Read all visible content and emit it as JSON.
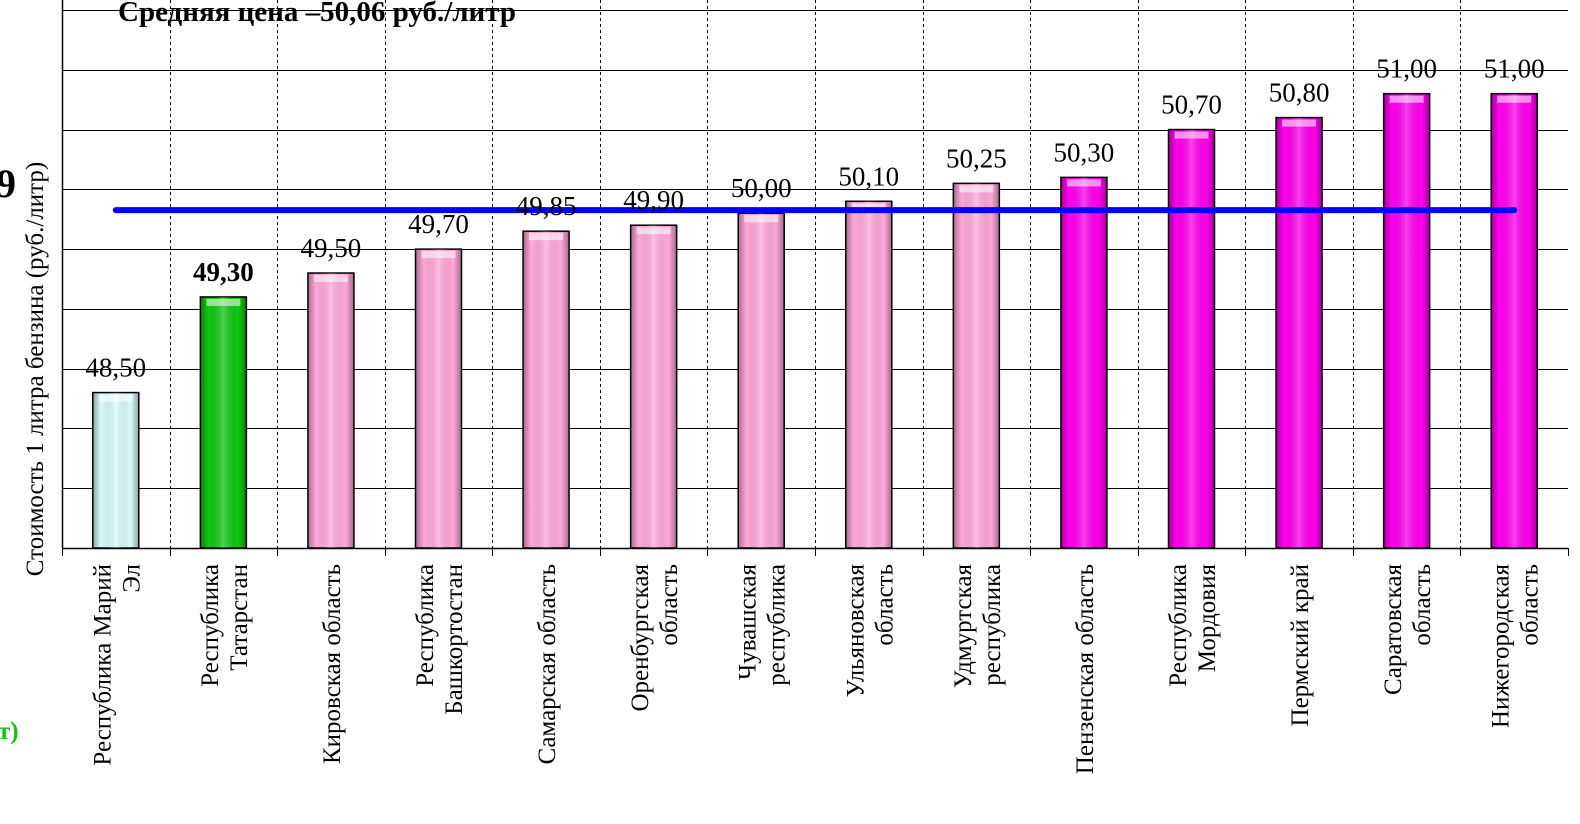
{
  "chart_data": {
    "type": "bar",
    "title": "Средняя цена –50,06 руб./литр",
    "ylabel": "Стоимость 1 литра бензина  (руб./литр)",
    "xlabel": "",
    "ylim": [
      47.2,
      51.7
    ],
    "grid": true,
    "average": 50.06,
    "categories": [
      [
        "Республика Марий",
        "Эл"
      ],
      [
        "Республика",
        "Татарстан"
      ],
      [
        "Кировская  область"
      ],
      [
        "Республика",
        "Башкортостан"
      ],
      [
        "Самарская область"
      ],
      [
        "Оренбургская",
        "область"
      ],
      [
        "Чувашская",
        "республика"
      ],
      [
        "Ульяновская",
        "область"
      ],
      [
        "Удмуртская",
        "республика"
      ],
      [
        "Пензенская область"
      ],
      [
        "Республика",
        "Мордовия"
      ],
      [
        "Пермский край"
      ],
      [
        "Саратовская",
        "область"
      ],
      [
        "Нижегородская",
        "область"
      ]
    ],
    "values": [
      48.5,
      49.3,
      49.5,
      49.7,
      49.85,
      49.9,
      50.0,
      50.1,
      50.25,
      50.3,
      50.7,
      50.8,
      51.0,
      51.0
    ],
    "value_labels": [
      "48,50",
      "49,30",
      "49,50",
      "49,70",
      "49,85",
      "49,90",
      "50,00",
      "50,10",
      "50,25",
      "50,30",
      "50,70",
      "50,80",
      "51,00",
      "51,00"
    ],
    "bold_index": 1,
    "bar_colors": [
      "#d8fbfb",
      "#12c812",
      "#ffa8d8",
      "#ffa8d8",
      "#ffa8d8",
      "#ffa8d8",
      "#ffa8d8",
      "#ffa8d8",
      "#ffa8d8",
      "#ff00ee",
      "#ff00ee",
      "#ff00ee",
      "#ff00ee",
      "#ff00ee"
    ],
    "average_line_color": "#0000ff"
  },
  "edge_fragments": {
    "left_glyph": "9",
    "green_text": "т)"
  }
}
